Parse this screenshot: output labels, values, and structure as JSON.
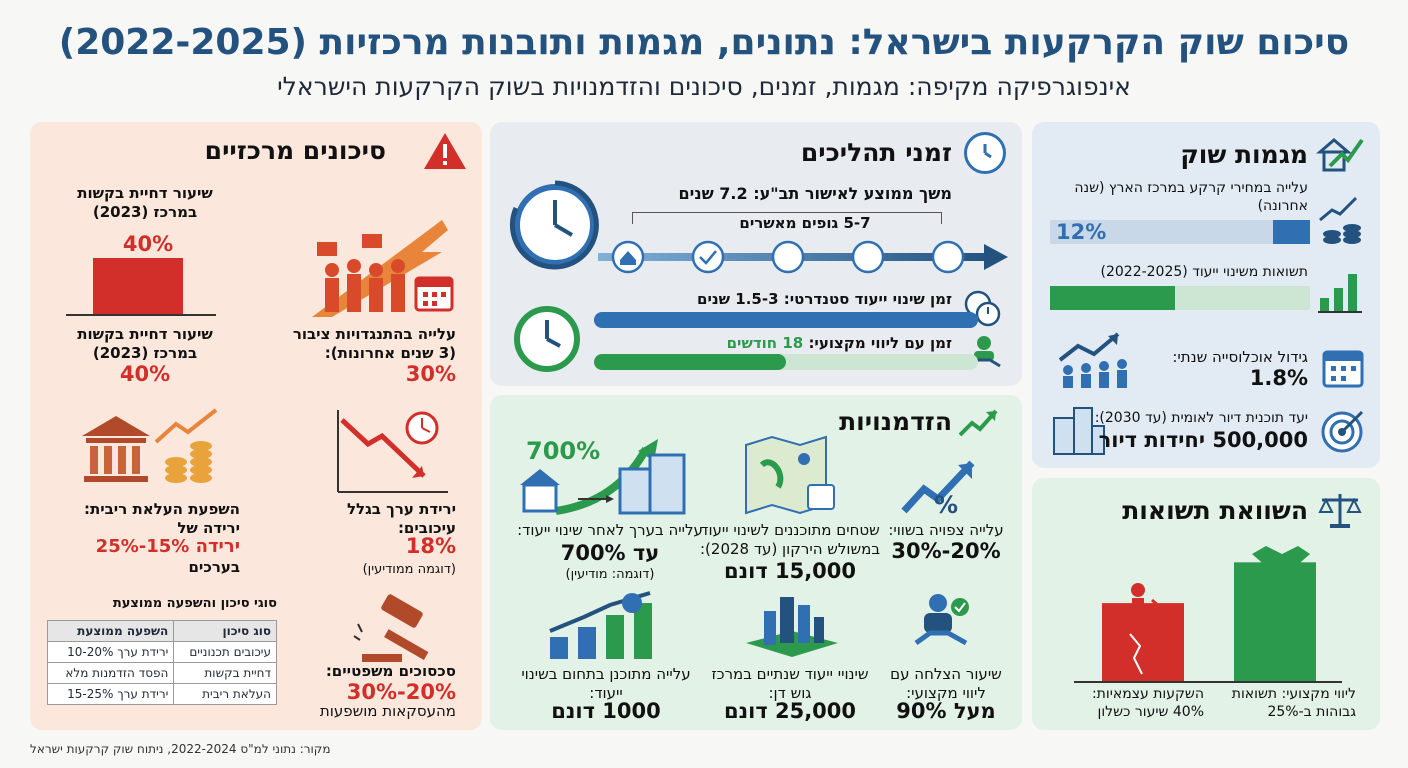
{
  "title": "סיכום שוק הקרקעות בישראל: נתונים, מגמות ותובנות מרכזיות (2022-2025)",
  "subtitle": "אינפוגרפיקה מקיפה: מגמות, זמנים, סיכונים והזדמנויות בשוק הקרקעות הישראלי",
  "colors": {
    "title": "#24527f",
    "accent_blue": "#2f6fb2",
    "accent_green": "#2c9a4c",
    "accent_red": "#d22f2a",
    "accent_orange": "#e8853b"
  },
  "risks": {
    "heading": "סיכונים מרכזיים",
    "rejection_title": "שיעור דחיית בקשות במרכז (2023)",
    "rejection_bar_value": "40%",
    "rejection_bar_fraction": 0.4,
    "rejection_label": "שיעור דחיית בקשות במרכז (2023)",
    "rejection_value": "40%",
    "protests_label": "עלייה בהתנגדויות ציבור (3 שנים אחרונות):",
    "protests_value": "30%",
    "interest_label": "השפעת העלאת ריבית: ירידה של",
    "interest_value": "ירידה 15%-25%",
    "interest_suffix": "בערכים",
    "delay_label": "ירידת ערך בגלל עיכובים:",
    "delay_value": "18%",
    "delay_note": "(דוגמה ממודיעין)",
    "table_title": "סוגי סיכון והשפעה ממוצעת",
    "table_headers": [
      "סוג סיכון",
      "השפעה ממוצעת"
    ],
    "table_rows": [
      [
        "עיכובים תכנוניים",
        "ירידת ערך 10-20%"
      ],
      [
        "דחיית בקשות",
        "הפסד הזדמנות מלא"
      ],
      [
        "העלאת ריבית",
        "ירידת ערך 15-25%"
      ]
    ],
    "legal_label": "סכסוכים משפטיים:",
    "legal_value": "20%-30%",
    "legal_suffix": "מהעסקאות מושפעות"
  },
  "timelines": {
    "heading": "זמני תהליכים",
    "avg_label": "משך ממוצע לאישור תב\"ע: 7.2 שנים",
    "bodies_label": "5-7 גופים מאשרים",
    "standard_label": "זמן שינוי ייעוד סטנדרטי: 1.5-3 שנים",
    "standard_fraction": 1.0,
    "pro_label": "זמן עם ליווי מקצועי:",
    "pro_value": "18 חודשים",
    "pro_fraction": 0.5
  },
  "opportunities": {
    "heading": "הזדמנויות",
    "growth_badge": "700%",
    "growth_label": "עלייה בערך לאחר שינוי ייעוד:",
    "growth_value": "עד 700%",
    "growth_note": "(דוגמה: מודיעין)",
    "areas_label": "שטחים מתוכננים לשינוי ייעוד במשולש הירקון (עד 2028):",
    "areas_value": "15,000 דונם",
    "expected_label": "עלייה צפויה בשווי:",
    "expected_value": "20%-30%",
    "rate_label": "עלייה מתוכנן בתחום בשינוי ייעוד:",
    "rate_value": "1000 דונם",
    "yearly_label": "שינויי ייעוד שנתיים במרכז גוש דן:",
    "yearly_value": "25,000 דונם",
    "success_label": "שיעור הצלחה עם ליווי מקצועי:",
    "success_value": "מעל 90%"
  },
  "trends": {
    "heading": "מגמות שוק",
    "land_label": "עלייה במחירי קרקע במרכז הארץ (שנה אחרונה)",
    "land_value": "12%",
    "land_fraction": 0.12,
    "returns_label": "תשואות משינוי ייעוד (2022-2025)",
    "returns_value": "30%-50%",
    "returns_fraction": 0.4,
    "pop_label": "גידול אוכלוסייה שנתי:",
    "pop_value": "1.8%",
    "housing_label": "יעד תוכנית דיור לאומית (עד 2030):",
    "housing_value": "500,000 יחידות דיור"
  },
  "compare": {
    "heading": "השוואת תשואות",
    "self_label": "השקעות עצמאיות: 40% שיעור כשלון",
    "self_fraction": 0.4,
    "pro_label": "ליווי מקצועי: תשואות גבוהות ב-25%",
    "pro_fraction": 0.88
  },
  "source": "מקור: נתוני למ\"ס 2022-2024, ניתוח שוק קרקעות ישראל"
}
